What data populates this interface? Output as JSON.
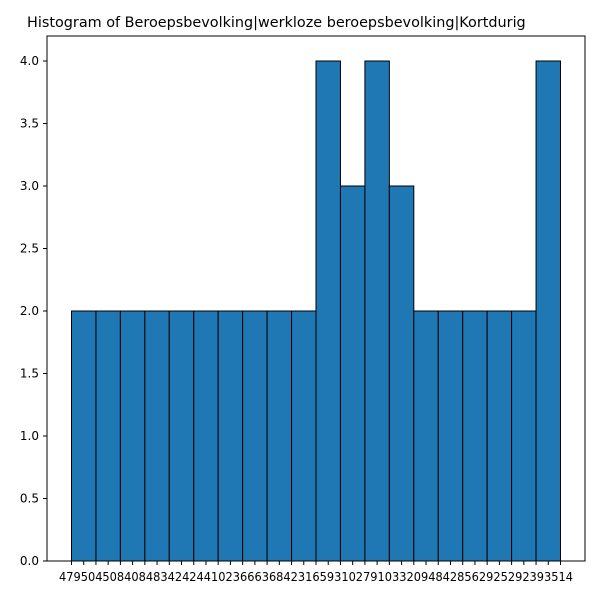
{
  "chart_data": {
    "type": "bar",
    "title": "Histogram of Beroepsbevolking|werkloze beroepsbevolking|Kortdurig",
    "xlabel": "",
    "ylabel": "",
    "ylim": [
      0,
      4.2
    ],
    "yticks": [
      "0.0",
      "0.5",
      "1.0",
      "1.5",
      "2.0",
      "2.5",
      "3.0",
      "3.5",
      "4.0"
    ],
    "xticks_text": "47950450840848342424410236663684231659310279103320948428562925292393514",
    "values": [
      2,
      2,
      2,
      2,
      2,
      2,
      2,
      2,
      2,
      2,
      4,
      3,
      4,
      3,
      2,
      2,
      2,
      2,
      2,
      4
    ],
    "bar_color": "#1f77b4",
    "edge_color": "#000000",
    "grid": false,
    "legend": "none"
  }
}
